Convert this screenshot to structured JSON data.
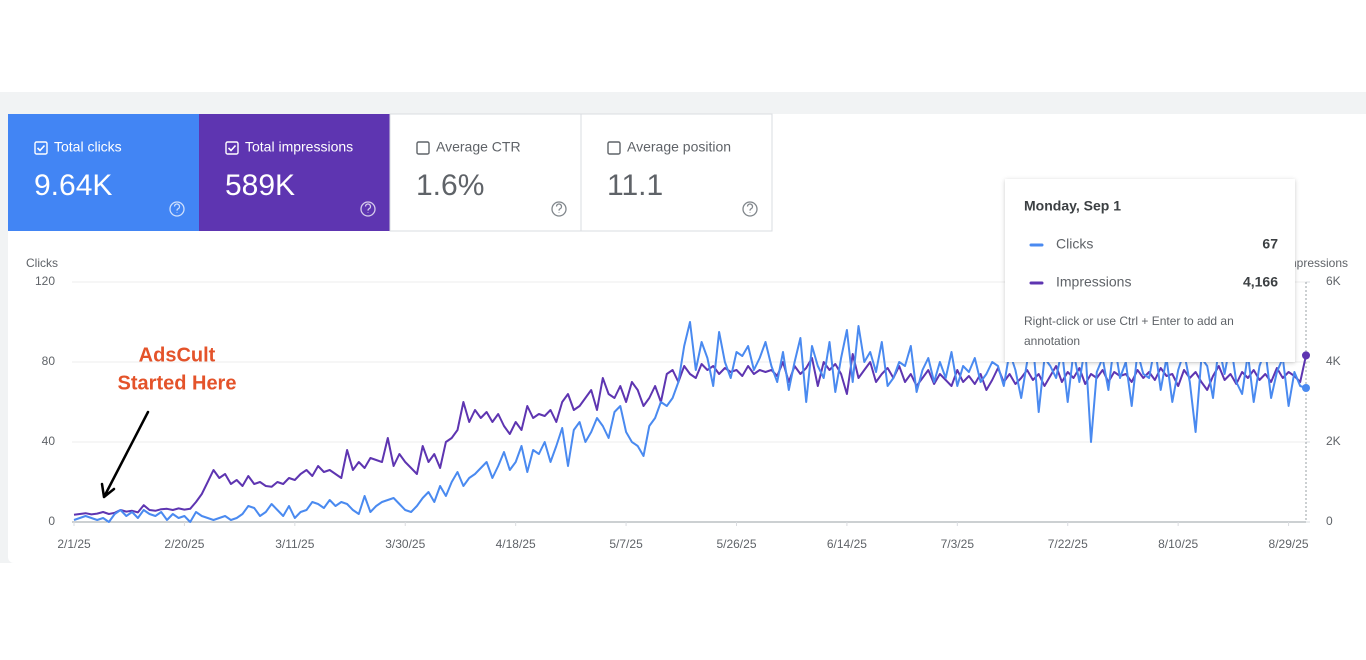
{
  "cards": [
    {
      "label": "Total clicks",
      "value": "9.64K",
      "checked": true,
      "color": "#4285f4"
    },
    {
      "label": "Total impressions",
      "value": "589K",
      "checked": true,
      "color": "#5e35b1"
    },
    {
      "label": "Average CTR",
      "value": "1.6%",
      "checked": false,
      "color": "#ffffff"
    },
    {
      "label": "Average position",
      "value": "11.1",
      "checked": false,
      "color": "#ffffff"
    }
  ],
  "annotation": {
    "lines": [
      "AdsCult",
      "Started Here"
    ],
    "color": "#e4532a"
  },
  "tooltip": {
    "date": "Monday, Sep 1",
    "rows": [
      {
        "name": "Clicks",
        "value": "67"
      },
      {
        "name": "Impressions",
        "value": "4,166"
      }
    ],
    "hint": [
      "Right-click or use Ctrl + Enter to add an",
      "annotation"
    ]
  },
  "chart_data": {
    "type": "line",
    "y_label": "Clicks",
    "y2_label": "Impressions",
    "grid": true,
    "x": [
      "2/1/25",
      "2/2/25",
      "2/3/25",
      "2/4/25",
      "2/5/25",
      "2/6/25",
      "2/7/25",
      "2/8/25",
      "2/9/25",
      "2/10/25",
      "2/11/25",
      "2/12/25",
      "2/13/25",
      "2/14/25",
      "2/15/25",
      "2/16/25",
      "2/17/25",
      "2/18/25",
      "2/19/25",
      "2/20/25",
      "2/21/25",
      "2/22/25",
      "2/23/25",
      "2/24/25",
      "2/25/25",
      "2/26/25",
      "2/27/25",
      "2/28/25",
      "3/1/25",
      "3/2/25",
      "3/3/25",
      "3/4/25",
      "3/5/25",
      "3/6/25",
      "3/7/25",
      "3/8/25",
      "3/9/25",
      "3/10/25",
      "3/11/25",
      "3/12/25",
      "3/13/25",
      "3/14/25",
      "3/15/25",
      "3/16/25",
      "3/17/25",
      "3/18/25",
      "3/19/25",
      "3/20/25",
      "3/21/25",
      "3/22/25",
      "3/23/25",
      "3/24/25",
      "3/25/25",
      "3/26/25",
      "3/27/25",
      "3/28/25",
      "3/29/25",
      "3/30/25",
      "3/31/25",
      "4/1/25",
      "4/2/25",
      "4/3/25",
      "4/4/25",
      "4/5/25",
      "4/6/25",
      "4/7/25",
      "4/8/25",
      "4/9/25",
      "4/10/25",
      "4/11/25",
      "4/12/25",
      "4/13/25",
      "4/14/25",
      "4/15/25",
      "4/16/25",
      "4/17/25",
      "4/18/25",
      "4/19/25",
      "4/20/25",
      "4/21/25",
      "4/22/25",
      "4/23/25",
      "4/24/25",
      "4/25/25",
      "4/26/25",
      "4/27/25",
      "4/28/25",
      "4/29/25",
      "4/30/25",
      "5/1/25",
      "5/2/25",
      "5/3/25",
      "5/4/25",
      "5/5/25",
      "5/6/25",
      "5/7/25",
      "5/8/25",
      "5/9/25",
      "5/10/25",
      "5/11/25",
      "5/12/25",
      "5/13/25",
      "5/14/25",
      "5/15/25",
      "5/16/25",
      "5/17/25",
      "5/18/25",
      "5/19/25",
      "5/20/25",
      "5/21/25",
      "5/22/25",
      "5/23/25",
      "5/24/25",
      "5/25/25",
      "5/26/25",
      "5/27/25",
      "5/28/25",
      "5/29/25",
      "5/30/25",
      "5/31/25",
      "6/1/25",
      "6/2/25",
      "6/3/25",
      "6/4/25",
      "6/5/25",
      "6/6/25",
      "6/7/25",
      "6/8/25",
      "6/9/25",
      "6/10/25",
      "6/11/25",
      "6/12/25",
      "6/13/25",
      "6/14/25",
      "6/15/25",
      "6/16/25",
      "6/17/25",
      "6/18/25",
      "6/19/25",
      "6/20/25",
      "6/21/25",
      "6/22/25",
      "6/23/25",
      "6/24/25",
      "6/25/25",
      "6/26/25",
      "6/27/25",
      "6/28/25",
      "6/29/25",
      "6/30/25",
      "7/1/25",
      "7/2/25",
      "7/3/25",
      "7/4/25",
      "7/5/25",
      "7/6/25",
      "7/7/25",
      "7/8/25",
      "7/9/25",
      "7/10/25",
      "7/11/25",
      "7/12/25",
      "7/13/25",
      "7/14/25",
      "7/15/25",
      "7/16/25",
      "7/17/25",
      "7/18/25",
      "7/19/25",
      "7/20/25",
      "7/21/25",
      "7/22/25",
      "7/23/25",
      "7/24/25",
      "7/25/25",
      "7/26/25",
      "7/27/25",
      "7/28/25",
      "7/29/25",
      "7/30/25",
      "7/31/25",
      "8/1/25",
      "8/2/25",
      "8/3/25",
      "8/4/25",
      "8/5/25",
      "8/6/25",
      "8/7/25",
      "8/8/25",
      "8/9/25",
      "8/10/25",
      "8/11/25",
      "8/12/25",
      "8/13/25",
      "8/14/25",
      "8/15/25",
      "8/16/25",
      "8/17/25",
      "8/18/25",
      "8/19/25",
      "8/20/25",
      "8/21/25",
      "8/22/25",
      "8/23/25",
      "8/24/25",
      "8/25/25",
      "8/26/25",
      "8/27/25",
      "8/28/25",
      "8/29/25",
      "8/30/25",
      "8/31/25",
      "9/1/25"
    ],
    "xticks": [
      "2/1/25",
      "2/20/25",
      "3/11/25",
      "3/30/25",
      "4/18/25",
      "5/7/25",
      "5/26/25",
      "6/14/25",
      "7/3/25",
      "7/22/25",
      "8/10/25",
      "8/29/25"
    ],
    "ylim": [
      0,
      120
    ],
    "yticks": [
      0,
      40,
      80,
      120
    ],
    "y2lim": [
      0,
      6000
    ],
    "y2ticks": [
      0,
      {
        "value": 2000,
        "label": "2K"
      },
      {
        "value": 4000,
        "label": "4K"
      },
      {
        "value": 6000,
        "label": "6K"
      }
    ],
    "series": [
      {
        "name": "Impressions",
        "color": "#5e35b1",
        "axis": "y2",
        "values": [
          180,
          200,
          220,
          190,
          210,
          250,
          200,
          230,
          300,
          260,
          280,
          240,
          420,
          300,
          280,
          320,
          330,
          300,
          340,
          310,
          330,
          500,
          700,
          1000,
          1300,
          1100,
          1200,
          950,
          1050,
          900,
          1150,
          950,
          1000,
          900,
          880,
          1000,
          950,
          1100,
          1050,
          1200,
          1300,
          1150,
          1400,
          1250,
          1300,
          1200,
          1100,
          1800,
          1300,
          1500,
          1350,
          1600,
          1550,
          1500,
          2100,
          1400,
          1700,
          1500,
          1350,
          1200,
          1900,
          1500,
          1700,
          1350,
          2000,
          2100,
          2300,
          3000,
          2500,
          2800,
          2600,
          2750,
          2500,
          2700,
          2400,
          2200,
          2500,
          2300,
          2900,
          2600,
          2700,
          2650,
          2800,
          2500,
          3000,
          3200,
          2800,
          2900,
          3100,
          3300,
          2800,
          3600,
          3200,
          3100,
          3400,
          3000,
          3500,
          3300,
          2900,
          3100,
          3400,
          3000,
          3700,
          3800,
          3500,
          3900,
          3700,
          3600,
          3950,
          3800,
          3900,
          3700,
          3850,
          3750,
          3800,
          3650,
          3900,
          3700,
          3800,
          3750,
          3800,
          3650,
          4000,
          3500,
          3900,
          3700,
          3850,
          4100,
          3400,
          4000,
          3800,
          3950,
          3700,
          3200,
          4200,
          3600,
          3800,
          4000,
          3500,
          3700,
          3850,
          3600,
          3900,
          3500,
          3700,
          3400,
          3600,
          3800,
          3450,
          3700,
          3550,
          3400,
          3800,
          3500,
          3650,
          3450,
          3700,
          3300,
          3550,
          3850,
          3500,
          3700,
          3450,
          3600,
          3800,
          3550,
          3700,
          3400,
          3650,
          3900,
          3500,
          3750,
          3600,
          3850,
          3450,
          3700,
          3600,
          3800,
          3500,
          3750,
          3650,
          3700,
          3500,
          3800,
          3600,
          3750,
          3550,
          3850,
          3650,
          3700,
          3400,
          3800,
          3600,
          3750,
          3500,
          3300,
          3650,
          3900,
          3550,
          3700,
          3450,
          3750,
          3600,
          3800,
          3550,
          3700,
          3500,
          3850,
          3600,
          3750,
          3650,
          3500,
          4166
        ]
      },
      {
        "name": "Clicks",
        "color": "#4a8af0",
        "axis": "y",
        "values": [
          1,
          2,
          3,
          2,
          1,
          2,
          0,
          4,
          6,
          3,
          5,
          2,
          6,
          4,
          3,
          5,
          1,
          4,
          2,
          3,
          0,
          5,
          3,
          2,
          1,
          2,
          3,
          1,
          2,
          4,
          8,
          7,
          3,
          5,
          9,
          6,
          3,
          8,
          2,
          5,
          6,
          10,
          9,
          7,
          11,
          8,
          10,
          9,
          6,
          4,
          13,
          5,
          8,
          10,
          11,
          12,
          9,
          6,
          5,
          8,
          12,
          15,
          10,
          18,
          13,
          20,
          25,
          18,
          22,
          24,
          27,
          30,
          22,
          28,
          35,
          26,
          30,
          38,
          25,
          36,
          34,
          40,
          30,
          38,
          47,
          28,
          46,
          50,
          40,
          45,
          52,
          48,
          42,
          55,
          58,
          45,
          40,
          38,
          33,
          48,
          52,
          60,
          58,
          62,
          70,
          88,
          100,
          76,
          90,
          82,
          68,
          95,
          80,
          72,
          85,
          83,
          88,
          76,
          82,
          90,
          78,
          70,
          85,
          66,
          80,
          92,
          60,
          88,
          78,
          72,
          90,
          65,
          82,
          96,
          70,
          98,
          80,
          85,
          75,
          90,
          68,
          72,
          80,
          78,
          88,
          65,
          76,
          82,
          70,
          80,
          72,
          85,
          68,
          78,
          75,
          82,
          70,
          74,
          80,
          78,
          68,
          85,
          76,
          62,
          80,
          90,
          55,
          82,
          78,
          72,
          86,
          60,
          85,
          70,
          88,
          40,
          75,
          82,
          66,
          90,
          72,
          80,
          58,
          85,
          74,
          72,
          88,
          66,
          82,
          60,
          76,
          85,
          70,
          45,
          82,
          78,
          62,
          88,
          74,
          90,
          70,
          64,
          84,
          60,
          78,
          86,
          62,
          75,
          82,
          58,
          75,
          68,
          67
        ]
      }
    ]
  }
}
